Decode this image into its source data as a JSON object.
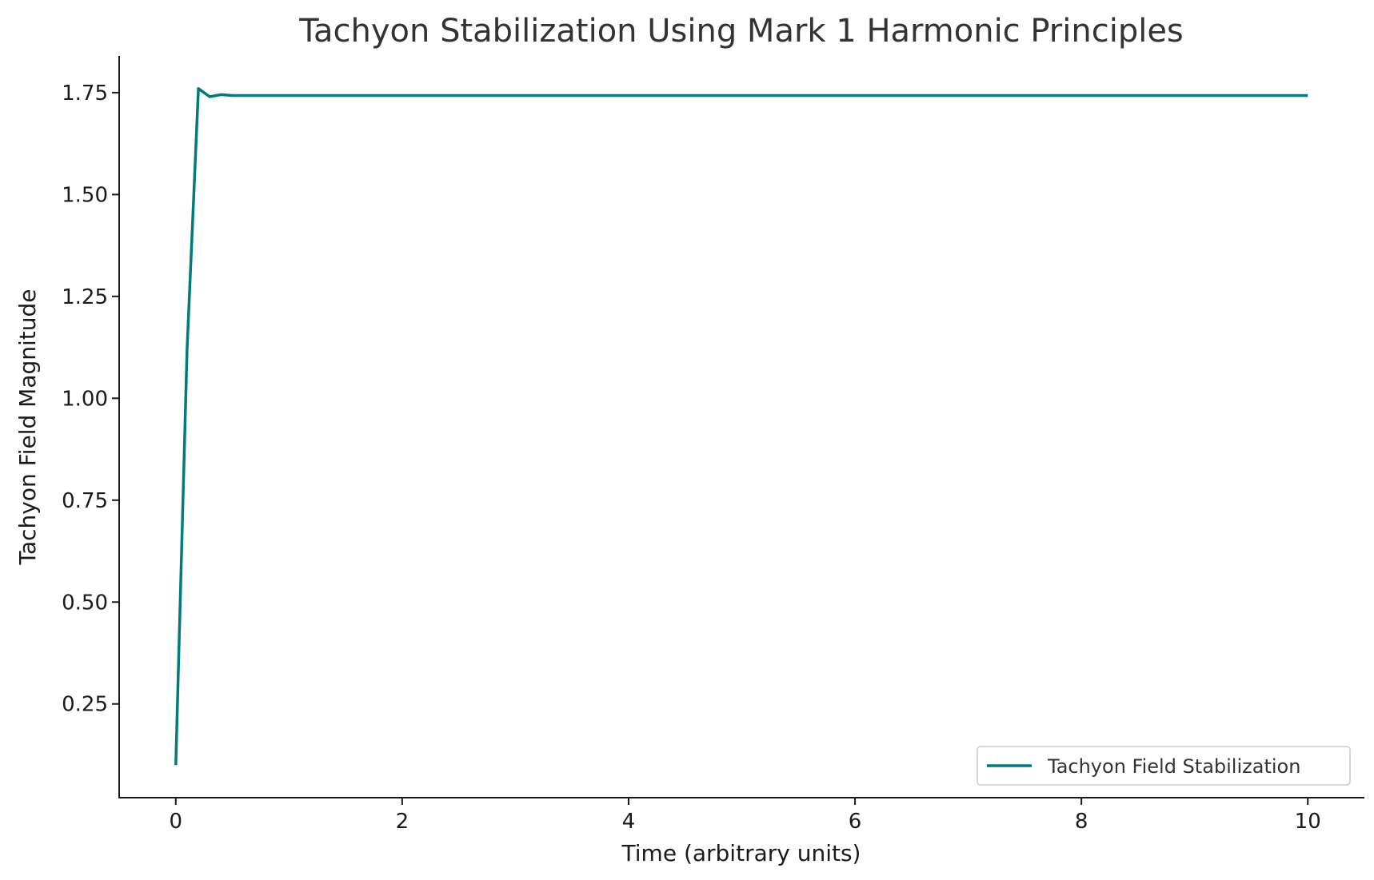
{
  "chart_data": {
    "type": "line",
    "title": "Tachyon Stabilization Using Mark 1 Harmonic Principles",
    "xlabel": "Time (arbitrary units)",
    "ylabel": "Tachyon Field Magnitude",
    "xlim": [
      -0.5,
      10.5
    ],
    "ylim": [
      0.02,
      1.84
    ],
    "xticks": [
      0,
      2,
      4,
      6,
      8,
      10
    ],
    "xtick_labels": [
      "0",
      "2",
      "4",
      "6",
      "8",
      "10"
    ],
    "yticks": [
      0.25,
      0.5,
      0.75,
      1.0,
      1.25,
      1.5,
      1.75
    ],
    "ytick_labels": [
      "0.25",
      "0.50",
      "0.75",
      "1.00",
      "1.25",
      "1.50",
      "1.75"
    ],
    "grid": false,
    "legend_position": "lower-right",
    "series": [
      {
        "name": "Tachyon Field Stabilization",
        "color": "#007b7b",
        "x": [
          0,
          0.1,
          0.2,
          0.3,
          0.4,
          0.5,
          1,
          2,
          3,
          4,
          5,
          6,
          7,
          8,
          9,
          10
        ],
        "y": [
          0.1,
          1.12,
          1.76,
          1.74,
          1.745,
          1.743,
          1.743,
          1.743,
          1.743,
          1.743,
          1.743,
          1.743,
          1.743,
          1.743,
          1.743,
          1.743
        ]
      }
    ]
  }
}
